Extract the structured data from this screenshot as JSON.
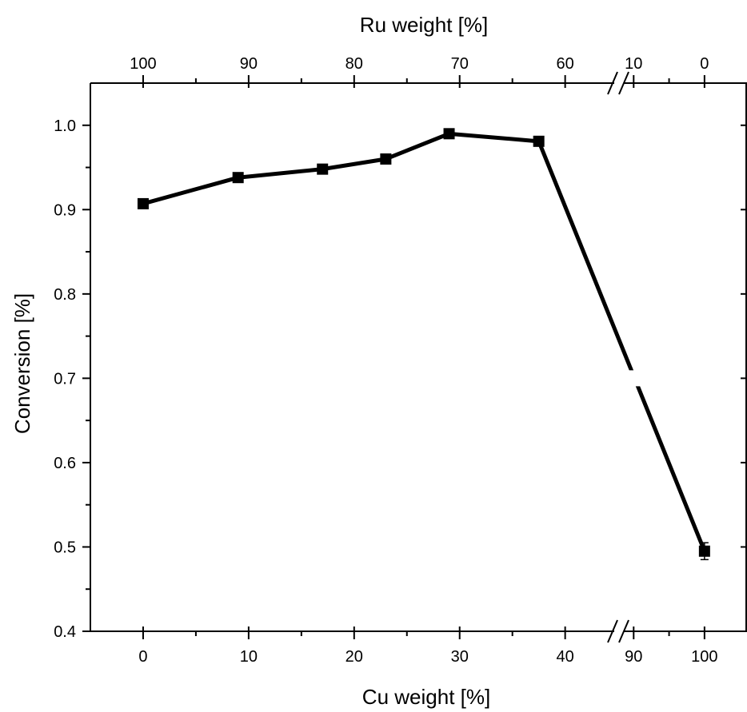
{
  "chart_data": {
    "type": "line",
    "title": "",
    "xlabel": "Cu weight [%]",
    "x2label": "Ru weight [%]",
    "ylabel": "Conversion [%]",
    "x_ticks": [
      "0",
      "10",
      "20",
      "30",
      "40",
      "90",
      "100"
    ],
    "x2_ticks": [
      "100",
      "90",
      "80",
      "70",
      "60",
      "10",
      "0"
    ],
    "y_ticks": [
      "0.4",
      "0.5",
      "0.6",
      "0.7",
      "0.8",
      "0.9",
      "1.0"
    ],
    "ylim": [
      0.4,
      1.05
    ],
    "x_axis_break": [
      40,
      90
    ],
    "grid": false,
    "legend": "none",
    "series": [
      {
        "x": [
          0,
          9,
          17,
          23,
          29,
          37.5,
          100
        ],
        "y": [
          0.907,
          0.938,
          0.948,
          0.96,
          0.99,
          0.981,
          0.495
        ],
        "y_error": [
          0,
          0,
          0,
          0,
          0,
          0,
          0.01
        ],
        "marker": "square",
        "color": "#000000"
      }
    ]
  }
}
